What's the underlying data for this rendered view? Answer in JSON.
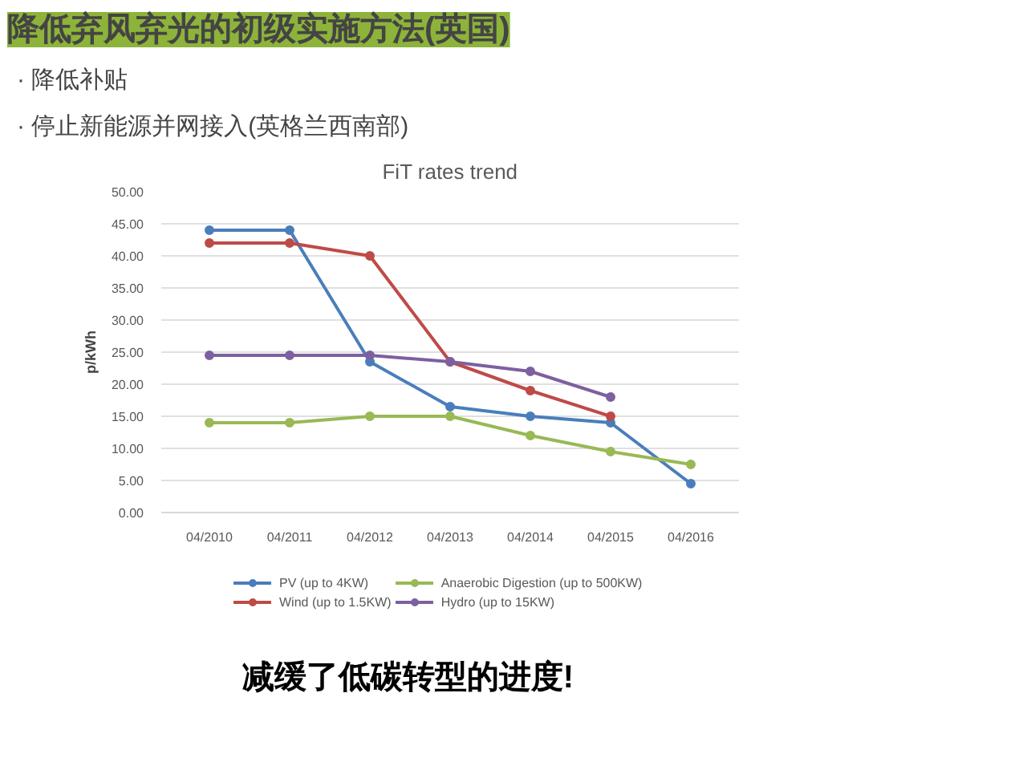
{
  "chart_data": {
    "type": "line",
    "title": "FiT rates trend",
    "ylabel": "p/kWh",
    "annotations": [
      "降低弃风弃光的初级实施方法(英国)",
      "· 降低补贴",
      "· 停止新能源并网接入(英格兰西南部)",
      "减缓了低碳转型的进度!"
    ],
    "categories": [
      "04/2010",
      "04/2011",
      "04/2012",
      "04/2013",
      "04/2014",
      "04/2015",
      "04/2016"
    ],
    "series": [
      {
        "name": "PV (up to 4KW)",
        "color": "#4a7ebb",
        "values": [
          44,
          44,
          23.5,
          16.5,
          15,
          14,
          4.5
        ]
      },
      {
        "name": "Wind (up to 1.5KW)",
        "color": "#be4b48",
        "values": [
          42,
          42,
          40,
          23.5,
          19,
          15,
          null
        ]
      },
      {
        "name": "Anaerobic Digestion (up to 500KW)",
        "color": "#98b954",
        "values": [
          14,
          14,
          15,
          15,
          12,
          9.5,
          7.5
        ]
      },
      {
        "name": "Hydro (up to 15KW)",
        "color": "#7d60a0",
        "values": [
          24.5,
          24.5,
          24.5,
          23.5,
          22,
          18,
          null
        ]
      }
    ],
    "ylim": [
      0,
      50
    ],
    "yticks": [
      {
        "value": 0,
        "label": "0.00"
      },
      {
        "value": 5,
        "label": "5.00"
      },
      {
        "value": 10,
        "label": "10.00"
      },
      {
        "value": 15,
        "label": "15.00"
      },
      {
        "value": 20,
        "label": "20.00"
      },
      {
        "value": 25,
        "label": "25.00"
      },
      {
        "value": 30,
        "label": "30.00"
      },
      {
        "value": 35,
        "label": "35.00"
      },
      {
        "value": 40,
        "label": "40.00"
      },
      {
        "value": 45,
        "label": "45.00"
      },
      {
        "value": 50,
        "label": "50.00"
      }
    ],
    "grid": "y",
    "legend": "bottom",
    "marker": "circle",
    "line_style": "solid"
  }
}
